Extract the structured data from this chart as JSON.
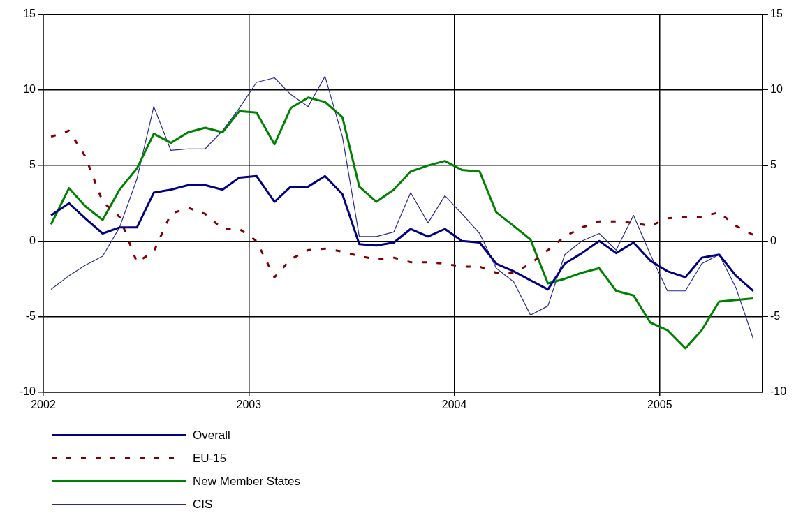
{
  "chart_data": {
    "type": "line",
    "x": [
      "2002-01-15",
      "2002-02-15",
      "2002-03-15",
      "2002-04-15",
      "2002-05-15",
      "2002-06-15",
      "2002-07-15",
      "2002-08-15",
      "2002-09-15",
      "2002-10-15",
      "2002-11-15",
      "2002-12-15",
      "2003-01-15",
      "2003-02-15",
      "2003-03-15",
      "2003-04-15",
      "2003-05-15",
      "2003-06-15",
      "2003-07-15",
      "2003-08-15",
      "2003-09-15",
      "2003-10-15",
      "2003-11-15",
      "2003-12-15",
      "2004-01-15",
      "2004-02-15",
      "2004-03-15",
      "2004-04-15",
      "2004-05-15",
      "2004-06-15",
      "2004-07-15",
      "2004-08-15",
      "2004-09-15",
      "2004-10-15",
      "2004-11-15",
      "2004-12-15",
      "2005-01-15",
      "2005-02-15",
      "2005-03-15",
      "2005-04-15",
      "2005-05-15",
      "2005-06-15"
    ],
    "series": [
      {
        "name": "Overall",
        "color": "#000080",
        "line_style": "solid",
        "values": [
          1.7,
          2.5,
          1.5,
          0.5,
          0.9,
          0.9,
          3.2,
          3.4,
          3.7,
          3.7,
          3.4,
          4.2,
          4.3,
          2.6,
          3.6,
          3.6,
          4.3,
          3.1,
          -0.2,
          -0.3,
          -0.1,
          0.8,
          0.3,
          0.8,
          0.0,
          -0.1,
          -1.5,
          -2.0,
          -2.6,
          -3.2,
          -1.5,
          -0.8,
          0.0,
          -0.8,
          -0.1,
          -1.3,
          -2.0,
          -2.4,
          -1.1,
          -0.9,
          -2.3,
          -3.3
        ]
      },
      {
        "name": "EU-15",
        "color": "#800000",
        "line_style": "dashed",
        "values": [
          6.9,
          7.3,
          5.6,
          2.6,
          1.6,
          -1.4,
          -0.7,
          1.8,
          2.2,
          1.8,
          0.8,
          0.8,
          0.0,
          -2.4,
          -1.2,
          -0.6,
          -0.5,
          -0.7,
          -1.0,
          -1.2,
          -1.1,
          -1.4,
          -1.4,
          -1.5,
          -1.7,
          -1.7,
          -2.1,
          -2.1,
          -1.5,
          -0.6,
          0.3,
          0.9,
          1.3,
          1.3,
          1.2,
          1.0,
          1.5,
          1.6,
          1.6,
          1.9,
          1.0,
          0.4
        ]
      },
      {
        "name": "New Member States",
        "color": "#008000",
        "line_style": "solid",
        "values": [
          1.1,
          3.5,
          2.3,
          1.4,
          3.4,
          4.8,
          7.1,
          6.5,
          7.2,
          7.5,
          7.2,
          8.6,
          8.5,
          6.4,
          8.8,
          9.5,
          9.2,
          8.2,
          3.6,
          2.6,
          3.4,
          4.6,
          5.0,
          5.3,
          4.7,
          4.6,
          1.9,
          1.0,
          0.1,
          -2.8,
          -2.5,
          -2.1,
          -1.8,
          -3.3,
          -3.6,
          -5.4,
          -5.9,
          -7.1,
          -5.9,
          -4.0,
          -3.9,
          -3.8
        ]
      },
      {
        "name": "CIS",
        "color": "#2a2a96",
        "line_style": "solid",
        "values": [
          -3.2,
          -2.3,
          -1.6,
          -1.0,
          0.9,
          4.1,
          8.9,
          6.0,
          6.1,
          6.1,
          7.3,
          8.8,
          10.5,
          10.8,
          9.7,
          8.9,
          10.9,
          6.9,
          0.3,
          0.3,
          0.6,
          3.2,
          1.2,
          3.0,
          1.8,
          0.5,
          -1.8,
          -2.7,
          -4.9,
          -4.3,
          -0.9,
          0.0,
          0.5,
          -0.6,
          1.7,
          -0.9,
          -3.3,
          -3.3,
          -1.5,
          -0.9,
          -3.1,
          -6.5
        ]
      }
    ],
    "xlim": [
      "2002-01-01",
      "2005-07-01"
    ],
    "xticks": [
      "2002",
      "2003",
      "2004",
      "2005"
    ],
    "ylim": [
      -10,
      15
    ],
    "yticks": [
      -10,
      -5,
      0,
      5,
      10,
      15
    ],
    "y2lim": [
      -10,
      15
    ],
    "y2ticks": [
      -10,
      -5,
      0,
      5,
      10,
      15
    ],
    "grid": true,
    "legend": "bottom",
    "marker": "none"
  }
}
